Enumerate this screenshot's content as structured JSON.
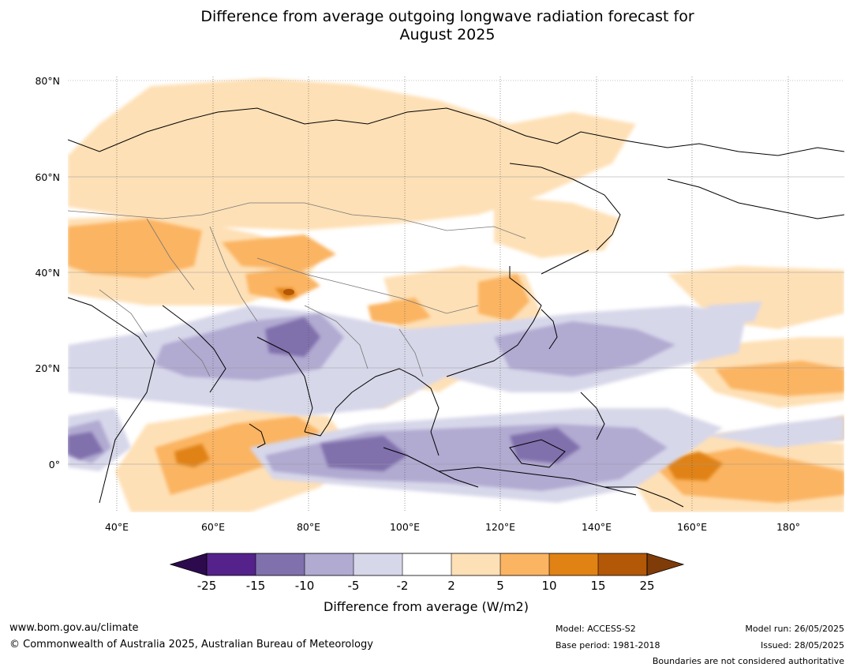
{
  "title_line1": "Difference from average outgoing longwave radiation forecast for",
  "title_line2": "August 2025",
  "lat_labels": [
    "80°N",
    "60°N",
    "40°N",
    "20°N",
    "0°"
  ],
  "lon_labels": [
    "40°E",
    "60°E",
    "80°E",
    "100°E",
    "120°E",
    "140°E",
    "160°E",
    "180°"
  ],
  "colorbar": {
    "ticks": [
      "-25",
      "-15",
      "-10",
      "-5",
      "-2",
      "2",
      "5",
      "10",
      "15",
      "25"
    ],
    "colors": [
      "#2d0a4e",
      "#54228a",
      "#8070ac",
      "#b1aad1",
      "#d7d7ea",
      "#ffffff",
      "#fee0b6",
      "#fbb462",
      "#e08214",
      "#b35807",
      "#7f3b08"
    ],
    "label": "Difference from average (W/m2)"
  },
  "footer": {
    "website": "www.bom.gov.au/climate",
    "copyright": "© Commonwealth of Australia 2025, Australian Bureau of Meteorology",
    "model": "Model: ACCESS-S2",
    "base_period": "Base period: 1981-2018",
    "model_run": "Model run: 26/05/2025",
    "issued": "Issued: 28/05/2025",
    "disclaimer": "Boundaries are not considered authoritative"
  }
}
